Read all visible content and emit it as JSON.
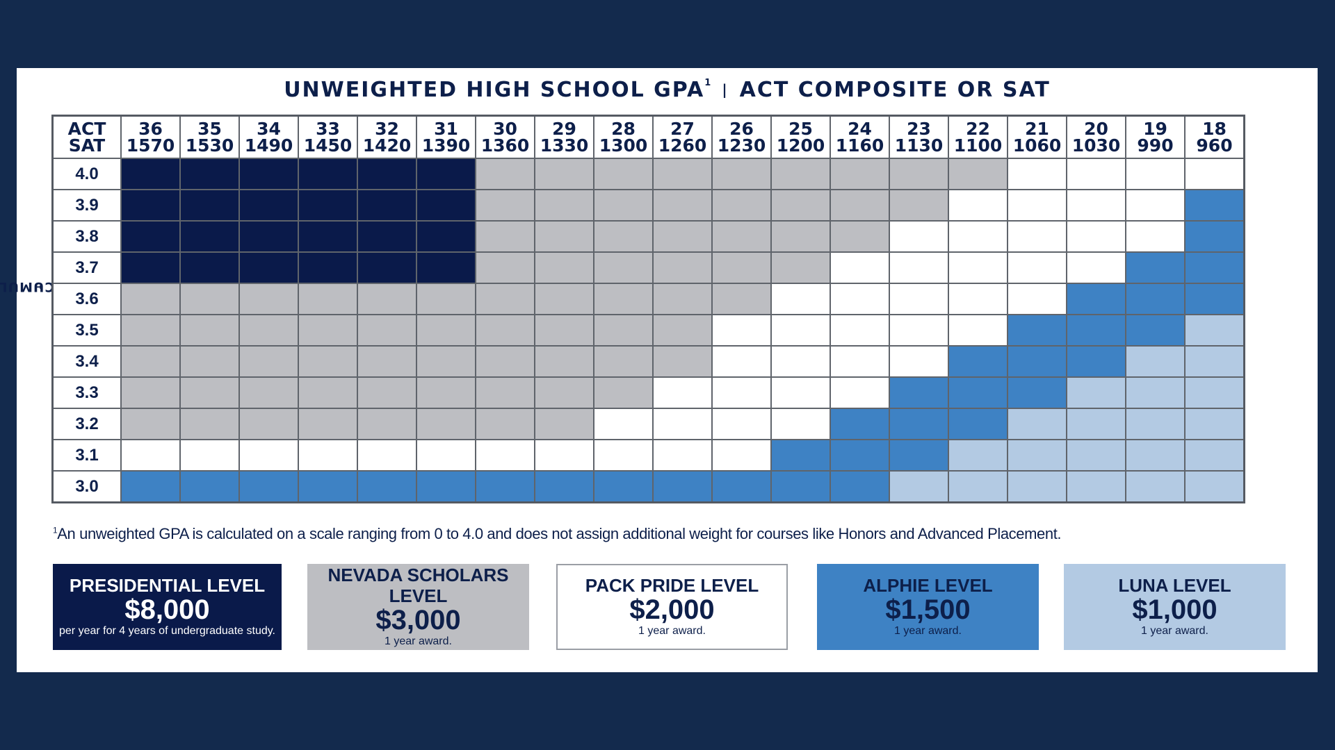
{
  "chart_data": {
    "type": "heatmap",
    "title": "UNWEIGHTED HIGH SCHOOL GPA",
    "title_sup": "1",
    "title_right": "ACT COMPOSITE OR SAT",
    "separator": "|",
    "ylabel": "UNWEIGHTED CUMULATIVE GPA",
    "ylabel_sup": "1",
    "corner": [
      "ACT",
      "SAT"
    ],
    "act": [
      "36",
      "35",
      "34",
      "33",
      "32",
      "31",
      "30",
      "29",
      "28",
      "27",
      "26",
      "25",
      "24",
      "23",
      "22",
      "21",
      "20",
      "19",
      "18"
    ],
    "sat": [
      "1570",
      "1530",
      "1490",
      "1450",
      "1420",
      "1390",
      "1360",
      "1330",
      "1300",
      "1260",
      "1230",
      "1200",
      "1160",
      "1130",
      "1100",
      "1060",
      "1030",
      "990",
      "960"
    ],
    "gpa": [
      "4.0",
      "3.9",
      "3.8",
      "3.7",
      "3.6",
      "3.5",
      "3.4",
      "3.3",
      "3.2",
      "3.1",
      "3.0"
    ],
    "cells": [
      [
        "P",
        "P",
        "P",
        "P",
        "P",
        "P",
        "N",
        "N",
        "N",
        "N",
        "N",
        "N",
        "N",
        "N",
        "N",
        "W",
        "W",
        "W",
        "W"
      ],
      [
        "P",
        "P",
        "P",
        "P",
        "P",
        "P",
        "N",
        "N",
        "N",
        "N",
        "N",
        "N",
        "N",
        "N",
        "W",
        "W",
        "W",
        "W",
        "A"
      ],
      [
        "P",
        "P",
        "P",
        "P",
        "P",
        "P",
        "N",
        "N",
        "N",
        "N",
        "N",
        "N",
        "N",
        "W",
        "W",
        "W",
        "W",
        "W",
        "A"
      ],
      [
        "P",
        "P",
        "P",
        "P",
        "P",
        "P",
        "N",
        "N",
        "N",
        "N",
        "N",
        "N",
        "W",
        "W",
        "W",
        "W",
        "W",
        "A",
        "A"
      ],
      [
        "N",
        "N",
        "N",
        "N",
        "N",
        "N",
        "N",
        "N",
        "N",
        "N",
        "N",
        "W",
        "W",
        "W",
        "W",
        "W",
        "A",
        "A",
        "A"
      ],
      [
        "N",
        "N",
        "N",
        "N",
        "N",
        "N",
        "N",
        "N",
        "N",
        "N",
        "W",
        "W",
        "W",
        "W",
        "W",
        "A",
        "A",
        "A",
        "L"
      ],
      [
        "N",
        "N",
        "N",
        "N",
        "N",
        "N",
        "N",
        "N",
        "N",
        "N",
        "W",
        "W",
        "W",
        "W",
        "A",
        "A",
        "A",
        "L",
        "L"
      ],
      [
        "N",
        "N",
        "N",
        "N",
        "N",
        "N",
        "N",
        "N",
        "N",
        "W",
        "W",
        "W",
        "W",
        "A",
        "A",
        "A",
        "L",
        "L",
        "L"
      ],
      [
        "N",
        "N",
        "N",
        "N",
        "N",
        "N",
        "N",
        "N",
        "W",
        "W",
        "W",
        "W",
        "A",
        "A",
        "A",
        "L",
        "L",
        "L",
        "L"
      ],
      [
        "W",
        "W",
        "W",
        "W",
        "W",
        "W",
        "W",
        "W",
        "W",
        "W",
        "W",
        "A",
        "A",
        "A",
        "L",
        "L",
        "L",
        "L",
        "L"
      ],
      [
        "A",
        "A",
        "A",
        "A",
        "A",
        "A",
        "A",
        "A",
        "A",
        "A",
        "A",
        "A",
        "A",
        "L",
        "L",
        "L",
        "L",
        "L",
        "L"
      ]
    ],
    "level_colors": {
      "P": "#0a1a4a",
      "N": "#bdbec2",
      "W": "#ffffff",
      "A": "#3e82c4",
      "L": "#b3cae3"
    }
  },
  "footnote": {
    "sup": "1",
    "text": "An unweighted GPA is calculated on a scale ranging from 0 to 4.0 and does not assign additional weight for courses like Honors and Advanced Placement."
  },
  "legend": [
    {
      "key": "P",
      "level": "PRESIDENTIAL LEVEL",
      "amount": "$8,000",
      "note": "per year for 4 years of undergraduate study.",
      "bg": "#0a1a4a",
      "fg": "#ffffff"
    },
    {
      "key": "N",
      "level": "NEVADA SCHOLARS LEVEL",
      "amount": "$3,000",
      "note": "1 year award.",
      "bg": "#bdbec2",
      "fg": "#0d1f4a"
    },
    {
      "key": "W",
      "level": "PACK PRIDE LEVEL",
      "amount": "$2,000",
      "note": "1 year award.",
      "bg": "#ffffff",
      "fg": "#0d1f4a"
    },
    {
      "key": "A",
      "level": "ALPHIE LEVEL",
      "amount": "$1,500",
      "note": "1 year award.",
      "bg": "#3e82c4",
      "fg": "#0d1f4a"
    },
    {
      "key": "L",
      "level": "LUNA LEVEL",
      "amount": "$1,000",
      "note": "1 year award.",
      "bg": "#b3cae3",
      "fg": "#0d1f4a"
    }
  ]
}
